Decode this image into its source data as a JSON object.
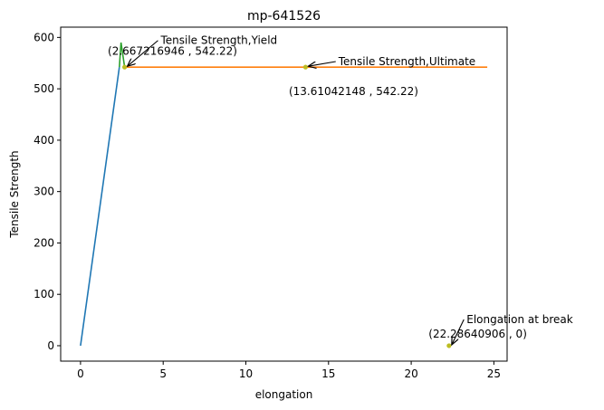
{
  "chart_data": {
    "type": "line",
    "title": "mp-641526",
    "xlabel": "elongation",
    "ylabel": "Tensile Strength",
    "xlim": [
      -1.2,
      25.8
    ],
    "ylim": [
      -30,
      620
    ],
    "xticks": [
      0,
      5,
      10,
      15,
      20,
      25
    ],
    "yticks": [
      0,
      100,
      200,
      300,
      400,
      500,
      600
    ],
    "grid": false,
    "series": [
      {
        "color": "#1f77b4",
        "x": [
          0,
          2.35
        ],
        "y": [
          0,
          542.22
        ]
      },
      {
        "color": "#2ca02c",
        "x": [
          2.35,
          2.45,
          2.667216946
        ],
        "y": [
          542.22,
          590,
          542.22
        ]
      },
      {
        "color": "#ff7f0e",
        "x": [
          2.667216946,
          24.6
        ],
        "y": [
          542.22,
          542.22
        ]
      }
    ],
    "points": [
      {
        "x": 2.667216946,
        "y": 542.22,
        "color": "#bcbd22"
      },
      {
        "x": 13.61042148,
        "y": 542.22,
        "color": "#bcbd22"
      },
      {
        "x": 22.28640906,
        "y": 0,
        "color": "#bcbd22"
      }
    ],
    "annotations": [
      {
        "name": "yield-label",
        "text": "Tensile Strength,Yield",
        "x": 4.85,
        "y": 587,
        "anchor": "start",
        "arrow_to": [
          2.667216946,
          542.22
        ]
      },
      {
        "name": "yield-value",
        "text": "(2.667216946 , 542.22)",
        "x": 1.65,
        "y": 566,
        "anchor": "start"
      },
      {
        "name": "ultimate-label",
        "text": "Tensile Strength,Ultimate",
        "x": 15.6,
        "y": 546,
        "anchor": "start",
        "arrow_to": [
          13.61042148,
          542.22
        ]
      },
      {
        "name": "ultimate-value",
        "text": "(13.61042148 , 542.22)",
        "x": 12.6,
        "y": 488,
        "anchor": "start"
      },
      {
        "name": "break-label",
        "text": "Elongation at break",
        "x": 23.35,
        "y": 44,
        "anchor": "start",
        "arrow_to": [
          22.28640906,
          0
        ]
      },
      {
        "name": "break-value",
        "text": "(22.28640906 , 0)",
        "x": 21.05,
        "y": 16,
        "anchor": "start"
      }
    ]
  }
}
